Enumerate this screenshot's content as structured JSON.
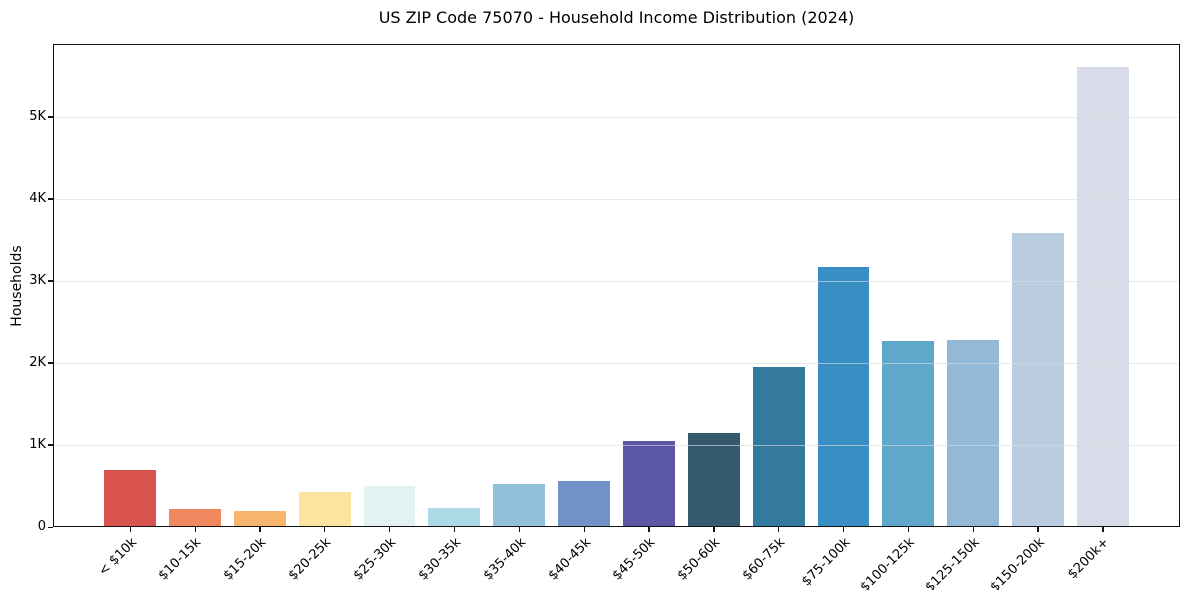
{
  "chart_data": {
    "type": "bar",
    "title": "US ZIP Code 75070 - Household Income Distribution (2024)",
    "xlabel": "",
    "ylabel": "Households",
    "categories": [
      "< $10k",
      "$10-15k",
      "$15-20k",
      "$20-25k",
      "$25-30k",
      "$30-35k",
      "$35-40k",
      "$40-45k",
      "$45-50k",
      "$50-60k",
      "$60-75k",
      "$75-100k",
      "$100-125k",
      "$125-150k",
      "$150-200k",
      "$200k+"
    ],
    "values": [
      695,
      225,
      200,
      425,
      505,
      230,
      530,
      565,
      1045,
      1150,
      1955,
      3175,
      2270,
      2285,
      3590,
      5610
    ],
    "bar_colors": [
      "#d9544e",
      "#f0875f",
      "#f9b46d",
      "#fde49e",
      "#e4f2f3",
      "#aed9e6",
      "#90c0dc",
      "#7192c7",
      "#5b56a6",
      "#35596d",
      "#337a9e",
      "#398fc3",
      "#5ea8cc",
      "#92bad8",
      "#b9cce0",
      "#d8dbe8"
    ],
    "ylim": [
      0,
      5890
    ],
    "ytick_values": [
      0,
      1000,
      2000,
      3000,
      4000,
      5000
    ],
    "ytick_labels": [
      "0",
      "1K",
      "2K",
      "3K",
      "4K",
      "5K"
    ],
    "grid": "horizontal",
    "legend_position": "none"
  },
  "colors": {
    "background": "#ffffff",
    "spine": "#111111",
    "grid": "#e9e9e9",
    "text": "#000000"
  }
}
